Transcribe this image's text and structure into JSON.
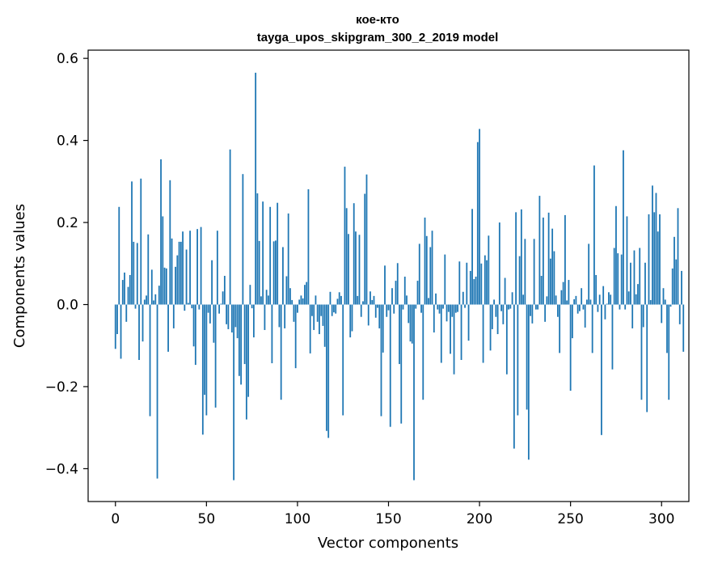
{
  "chart_data": {
    "type": "bar",
    "title": "кое-кто",
    "subtitle": "tayga_upos_skipgram_300_2_2019 model",
    "xlabel": "Vector components",
    "ylabel": "Components values",
    "xlim": [
      -15,
      315
    ],
    "ylim": [
      -0.48,
      0.62
    ],
    "xticks": [
      0,
      50,
      100,
      150,
      200,
      250,
      300
    ],
    "xtick_labels": [
      "0",
      "50",
      "100",
      "150",
      "200",
      "250",
      "300"
    ],
    "yticks": [
      -0.4,
      -0.2,
      0.0,
      0.2,
      0.4,
      0.6
    ],
    "ytick_labels": [
      "−0.4",
      "−0.2",
      "0.0",
      "0.2",
      "0.4",
      "0.6"
    ],
    "bar_color": "#1f77b4",
    "values": [
      -0.108,
      -0.072,
      0.238,
      -0.132,
      0.06,
      0.078,
      -0.042,
      0.043,
      0.072,
      0.3,
      0.153,
      -0.01,
      0.15,
      -0.135,
      0.307,
      -0.09,
      0.012,
      0.022,
      0.171,
      -0.272,
      0.085,
      0.01,
      0.025,
      -0.424,
      0.046,
      0.354,
      0.215,
      0.09,
      0.088,
      -0.115,
      0.303,
      0.161,
      -0.058,
      0.092,
      0.12,
      0.153,
      0.153,
      0.178,
      -0.015,
      0.134,
      0.004,
      0.18,
      -0.009,
      -0.102,
      -0.147,
      0.184,
      -0.012,
      0.189,
      -0.317,
      -0.22,
      -0.27,
      -0.02,
      -0.046,
      0.108,
      -0.093,
      -0.251,
      0.18,
      -0.022,
      0.002,
      0.032,
      0.07,
      -0.048,
      -0.06,
      0.378,
      -0.068,
      -0.428,
      -0.055,
      -0.082,
      -0.174,
      -0.195,
      0.318,
      -0.145,
      -0.28,
      -0.225,
      0.048,
      -0.009,
      -0.08,
      0.565,
      0.271,
      0.155,
      0.02,
      0.251,
      -0.062,
      0.036,
      0.022,
      0.238,
      -0.143,
      0.154,
      0.156,
      0.248,
      -0.055,
      -0.232,
      0.14,
      -0.058,
      0.069,
      0.222,
      0.04,
      0.011,
      -0.042,
      -0.155,
      -0.02,
      0.012,
      0.022,
      0.015,
      0.048,
      0.055,
      0.281,
      -0.119,
      -0.028,
      -0.062,
      0.022,
      -0.042,
      -0.072,
      -0.028,
      -0.052,
      -0.103,
      -0.308,
      -0.325,
      0.031,
      -0.028,
      -0.019,
      -0.022,
      0.014,
      0.03,
      0.021,
      -0.27,
      0.336,
      0.235,
      0.172,
      -0.08,
      -0.065,
      0.247,
      0.178,
      0.021,
      0.17,
      -0.03,
      0.008,
      0.27,
      0.317,
      -0.051,
      0.032,
      0.011,
      0.021,
      -0.032,
      -0.008,
      -0.058,
      -0.272,
      -0.117,
      0.095,
      -0.03,
      -0.014,
      -0.298,
      0.04,
      -0.022,
      0.058,
      0.101,
      -0.145,
      -0.29,
      -0.012,
      0.068,
      0.022,
      -0.045,
      -0.09,
      -0.095,
      -0.428,
      -0.01,
      0.058,
      0.148,
      -0.02,
      -0.232,
      0.212,
      0.167,
      0.016,
      0.14,
      0.18,
      -0.068,
      0.027,
      -0.012,
      -0.022,
      -0.142,
      -0.01,
      0.122,
      -0.041,
      -0.018,
      -0.12,
      -0.03,
      -0.17,
      -0.02,
      -0.018,
      0.105,
      -0.135,
      0.031,
      -0.008,
      0.102,
      -0.088,
      0.082,
      0.233,
      0.062,
      0.068,
      0.396,
      0.428,
      0.1,
      -0.142,
      0.12,
      0.108,
      0.168,
      -0.112,
      -0.06,
      0.012,
      -0.03,
      -0.072,
      0.2,
      -0.016,
      -0.048,
      0.065,
      -0.17,
      -0.012,
      -0.01,
      0.03,
      -0.351,
      0.225,
      -0.27,
      0.118,
      0.232,
      0.024,
      0.16,
      -0.256,
      -0.378,
      -0.028,
      -0.046,
      0.16,
      -0.012,
      -0.012,
      0.265,
      0.07,
      0.212,
      -0.042,
      0.02,
      0.224,
      0.112,
      0.185,
      0.13,
      0.022,
      -0.03,
      -0.118,
      0.035,
      0.055,
      0.218,
      0.01,
      0.06,
      -0.21,
      -0.082,
      0.013,
      0.021,
      -0.022,
      -0.016,
      0.04,
      -0.012,
      -0.056,
      0.012,
      0.148,
      0.012,
      -0.118,
      0.339,
      0.072,
      -0.018,
      0.024,
      -0.318,
      0.045,
      -0.036,
      0.002,
      0.03,
      0.024,
      -0.158,
      0.138,
      0.24,
      0.125,
      -0.012,
      0.122,
      0.376,
      -0.012,
      0.215,
      0.032,
      0.102,
      -0.058,
      0.132,
      0.025,
      0.05,
      0.138,
      -0.232,
      -0.055,
      0.102,
      -0.262,
      0.22,
      0.011,
      0.29,
      0.225,
      0.272,
      0.178,
      0.22,
      -0.045,
      0.04,
      0.012,
      -0.118,
      -0.232,
      -0.005,
      0.088,
      0.165,
      0.11,
      0.235,
      -0.048,
      0.082,
      -0.115
    ]
  }
}
